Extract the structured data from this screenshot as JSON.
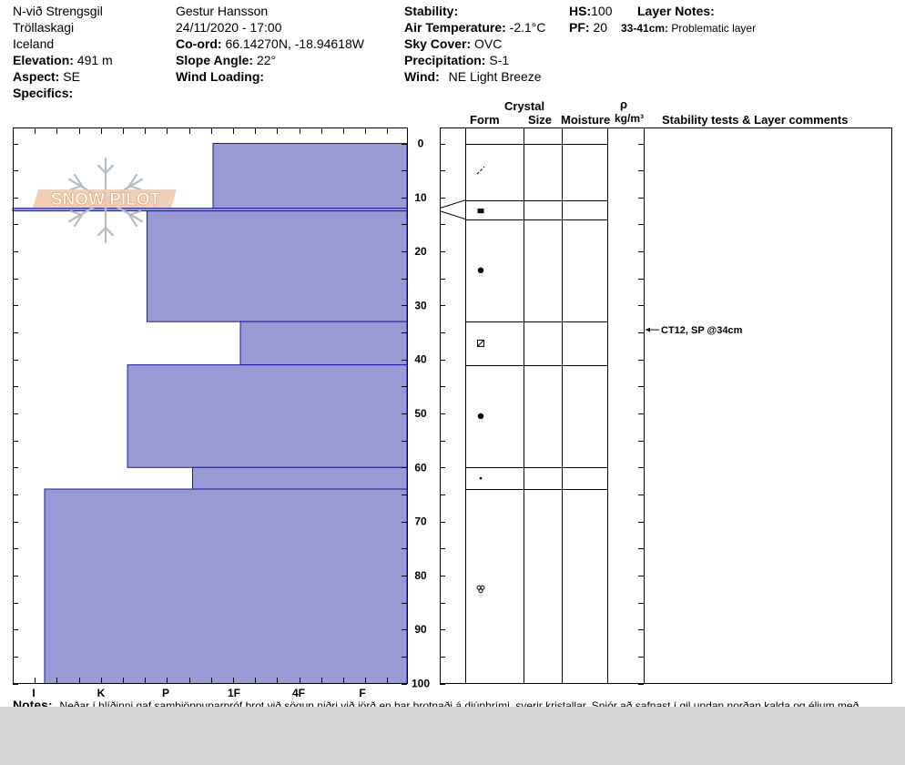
{
  "header": {
    "col1": {
      "location": "N-við Strengsgil",
      "region": "Tröllaskagi",
      "country": "Iceland",
      "elevation_label": "Elevation:",
      "elevation_value": "491 m",
      "aspect_label": "Aspect:",
      "aspect_value": "SE",
      "specifics_label": "Specifics:"
    },
    "col2": {
      "observer": "Gestur Hansson",
      "datetime": "24/11/2020 - 17:00",
      "coord_label": "Co-ord:",
      "coord_value": "66.14270N, -18.94618W",
      "slope_label": "Slope Angle:",
      "slope_value": "22°",
      "wind_loading_label": "Wind Loading:"
    },
    "col3": {
      "stability_label": "Stability:",
      "air_temp_label": "Air Temperature:",
      "air_temp_value": "-2.1°C",
      "sky_label": "Sky Cover:",
      "sky_value": "OVC",
      "precip_label": "Precipitation:",
      "precip_value": "S-1",
      "wind_label": "Wind:",
      "wind_value": "NE Light Breeze"
    },
    "col4": {
      "hs_label": "HS:",
      "hs_value": "100",
      "pf_label": "PF:",
      "pf_value": "20"
    },
    "layer_notes": {
      "title": "Layer Notes:",
      "range": "33-41cm:",
      "text": "Problematic layer"
    }
  },
  "columns": {
    "crystal": "Crystal",
    "form": "Form",
    "size": "Size",
    "moisture": "Moisture",
    "rho": "ρ",
    "density_unit": "kg/m³",
    "stability": "Stability tests & Layer comments"
  },
  "logo_text": "SNOW PILOT",
  "notes_label": "Notes:",
  "notes_text": "Neðar í hlíðinni gaf samþjöppunarpróf brot við sögun niðri við jörð en þar brotnaði á djúphrími, sverir kristallar. Snjór að safnast í gil undan norðan kalda og éljum með",
  "colors": {
    "bar_fill": "#9999d6",
    "bar_stroke": "#1a1aa6"
  },
  "chart_data": {
    "type": "bar",
    "orientation": "horizontal",
    "y_axis": {
      "ticks": [
        0,
        10,
        20,
        30,
        40,
        50,
        60,
        70,
        80,
        90,
        100
      ],
      "range": [
        0,
        100
      ],
      "inverted": true
    },
    "x_axis": {
      "categories": [
        "I",
        "K",
        "P",
        "1F",
        "4F",
        "F"
      ],
      "direction": "reversed"
    },
    "layers": [
      {
        "top": 0,
        "bottom": 12,
        "hardness": 3.6
      },
      {
        "top": 12,
        "bottom": 12.5,
        "hardness": 7.2
      },
      {
        "top": 12.5,
        "bottom": 33,
        "hardness": 4.6
      },
      {
        "top": 33,
        "bottom": 41,
        "hardness": 3.2
      },
      {
        "top": 41,
        "bottom": 60,
        "hardness": 4.9
      },
      {
        "top": 60,
        "bottom": 64,
        "hardness": 3.9
      },
      {
        "top": 64,
        "bottom": 100,
        "hardness": 6.2
      }
    ],
    "layer_boundaries": [
      0,
      10.5,
      14,
      33,
      41,
      60,
      64
    ],
    "grain_forms": [
      {
        "depth": 5,
        "form": "decomposing-fragments"
      },
      {
        "depth": 12.5,
        "form": "faceted-crystals"
      },
      {
        "depth": 23.5,
        "form": "rounded-grains"
      },
      {
        "depth": 37,
        "form": "faceted-rounded"
      },
      {
        "depth": 50.5,
        "form": "rounded-grains"
      },
      {
        "depth": 62,
        "form": "small-rounded"
      },
      {
        "depth": 82.5,
        "form": "melt-forms"
      }
    ],
    "stability_tests": [
      {
        "depth": 34.5,
        "text": "CT12, SP @34cm"
      }
    ]
  }
}
